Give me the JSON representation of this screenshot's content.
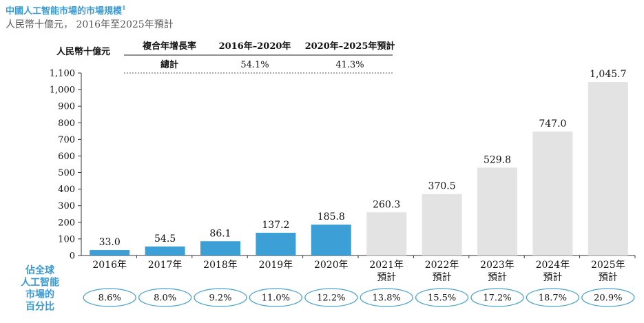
{
  "header": {
    "title": "中國人工智能市場的市場規模",
    "title_sup": "1",
    "subtitle": "人民幣十億元， 2016年至2025年預計"
  },
  "cagr_table": {
    "unit_label": "人民幣十億元",
    "col_header_label": "複合年增長率",
    "col1": "2016年–2020年",
    "col2": "2020年–2025年預計",
    "row_label": "總計",
    "row_values": [
      "54.1%",
      "41.3%"
    ]
  },
  "share_row": {
    "label_lines": [
      "佔全球",
      "人工智能",
      "市場的",
      "百分比"
    ],
    "values": [
      "8.6%",
      "8.0%",
      "9.2%",
      "11.0%",
      "12.2%",
      "13.8%",
      "15.5%",
      "17.2%",
      "18.7%",
      "20.9%"
    ]
  },
  "colors": {
    "actual": "#3c9fd6",
    "forecast": "#e3e3e3",
    "accent": "#3a9ad3",
    "oval": "#4aa3c9"
  },
  "chart_data": {
    "type": "bar",
    "title": "中國人工智能市場的市場規模",
    "ylabel": "人民幣十億元",
    "ylim": [
      0,
      1100
    ],
    "yticks": [
      "0",
      "100",
      "200",
      "300",
      "400",
      "500",
      "600",
      "700",
      "800",
      "900",
      "1,000",
      "1,100"
    ],
    "categories": [
      [
        "2016年"
      ],
      [
        "2017年"
      ],
      [
        "2018年"
      ],
      [
        "2019年"
      ],
      [
        "2020年"
      ],
      [
        "2021年",
        "預計"
      ],
      [
        "2022年",
        "預計"
      ],
      [
        "2023年",
        "預計"
      ],
      [
        "2024年",
        "預計"
      ],
      [
        "2025年",
        "預計"
      ]
    ],
    "values": [
      33.0,
      54.5,
      86.1,
      137.2,
      185.8,
      260.3,
      370.5,
      529.8,
      747.0,
      1045.7
    ],
    "value_labels": [
      "33.0",
      "54.5",
      "86.1",
      "137.2",
      "185.8",
      "260.3",
      "370.5",
      "529.8",
      "747.0",
      "1,045.7"
    ],
    "forecast": [
      false,
      false,
      false,
      false,
      false,
      true,
      true,
      true,
      true,
      true
    ],
    "grid": false
  }
}
